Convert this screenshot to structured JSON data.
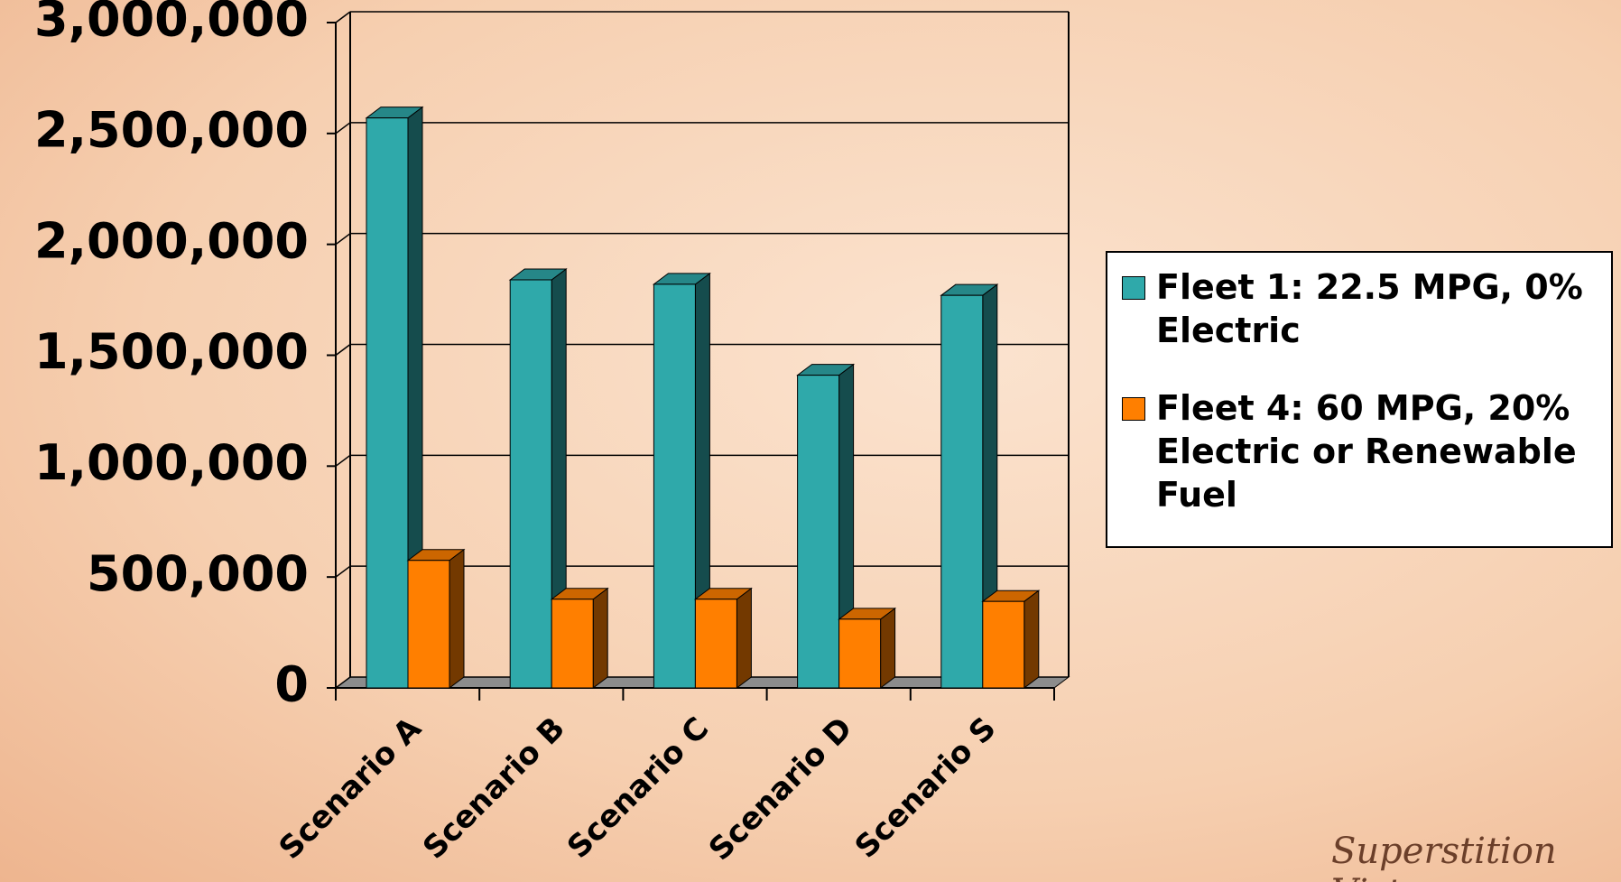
{
  "chart_data": {
    "type": "bar3d",
    "categories": [
      "Scenario A",
      "Scenario B",
      "Scenario C",
      "Scenario D",
      "Scenario S"
    ],
    "series": [
      {
        "name": "Fleet 1: 22.5 MPG, 0% Electric",
        "color": "#2fa9aa",
        "values": [
          2570000,
          1840000,
          1820000,
          1410000,
          1770000
        ]
      },
      {
        "name": "Fleet 4: 60 MPG, 20% Electric or Renewable Fuel",
        "color": "#ff7f00",
        "values": [
          575000,
          400000,
          400000,
          310000,
          390000
        ]
      }
    ],
    "ylim": [
      0,
      3000000
    ],
    "yticks": [
      {
        "value": 0,
        "label": "0"
      },
      {
        "value": 500000,
        "label": "500,000"
      },
      {
        "value": 1000000,
        "label": "1,000,000"
      },
      {
        "value": 1500000,
        "label": "1,500,000"
      },
      {
        "value": 2000000,
        "label": "2,000,000"
      },
      {
        "value": 2500000,
        "label": "2,500,000"
      },
      {
        "value": 3000000,
        "label": "3,000,000"
      }
    ],
    "grid": true,
    "legend": "right"
  },
  "logo": "Superstition Vistas"
}
